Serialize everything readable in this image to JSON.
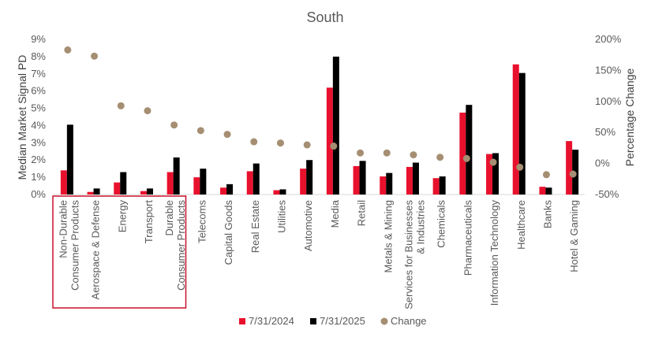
{
  "chart_data": {
    "type": "bar",
    "title": "South",
    "ylabel": "Median Market Signal PD",
    "y2label": "Percentage Change",
    "ylim": [
      0,
      9
    ],
    "y2lim": [
      -50,
      200
    ],
    "yticks": [
      "0%",
      "1%",
      "2%",
      "3%",
      "4%",
      "5%",
      "6%",
      "7%",
      "8%",
      "9%"
    ],
    "y2ticks": [
      "-50%",
      "0%",
      "50%",
      "100%",
      "150%",
      "200%"
    ],
    "legend_position": "bottom",
    "grid": false,
    "categories": [
      "Non-Durable\nConsumer Products",
      "Aerospace & Defense",
      "Energy",
      "Transport",
      "Durable\nConsumer Products",
      "Telecoms",
      "Capital Goods",
      "Real Estate",
      "Utilities",
      "Automotive",
      "Media",
      "Retail",
      "Metals & Mining",
      "Services for Businesses\n& Industries",
      "Chemicals",
      "Pharmaceuticals",
      "Information Technology",
      "Healthcare",
      "Banks",
      "Hotel & Gaming"
    ],
    "series": [
      {
        "name": "7/31/2024",
        "kind": "bar",
        "axis": "left",
        "color": "#E8112D",
        "values": [
          1.4,
          0.15,
          0.7,
          0.2,
          1.3,
          1.0,
          0.4,
          1.35,
          0.25,
          1.5,
          6.2,
          1.65,
          1.05,
          1.6,
          0.95,
          4.75,
          2.35,
          7.55,
          0.45,
          3.1
        ]
      },
      {
        "name": "7/31/2025",
        "kind": "bar",
        "axis": "left",
        "color": "#000000",
        "values": [
          4.05,
          0.35,
          1.3,
          0.35,
          2.15,
          1.5,
          0.6,
          1.8,
          0.3,
          2.0,
          8.0,
          1.95,
          1.25,
          1.85,
          1.05,
          5.2,
          2.4,
          7.05,
          0.4,
          2.6
        ]
      },
      {
        "name": "Change",
        "kind": "scatter",
        "axis": "right",
        "color": "#A58E72",
        "values": [
          183,
          173,
          93,
          85,
          62,
          53,
          47,
          35,
          33,
          30,
          28,
          17,
          17,
          14,
          10,
          8,
          2,
          -6,
          -18,
          -17
        ]
      }
    ],
    "highlight": {
      "first_category_index": 0,
      "last_category_index": 4,
      "color": "#C8102E"
    }
  }
}
